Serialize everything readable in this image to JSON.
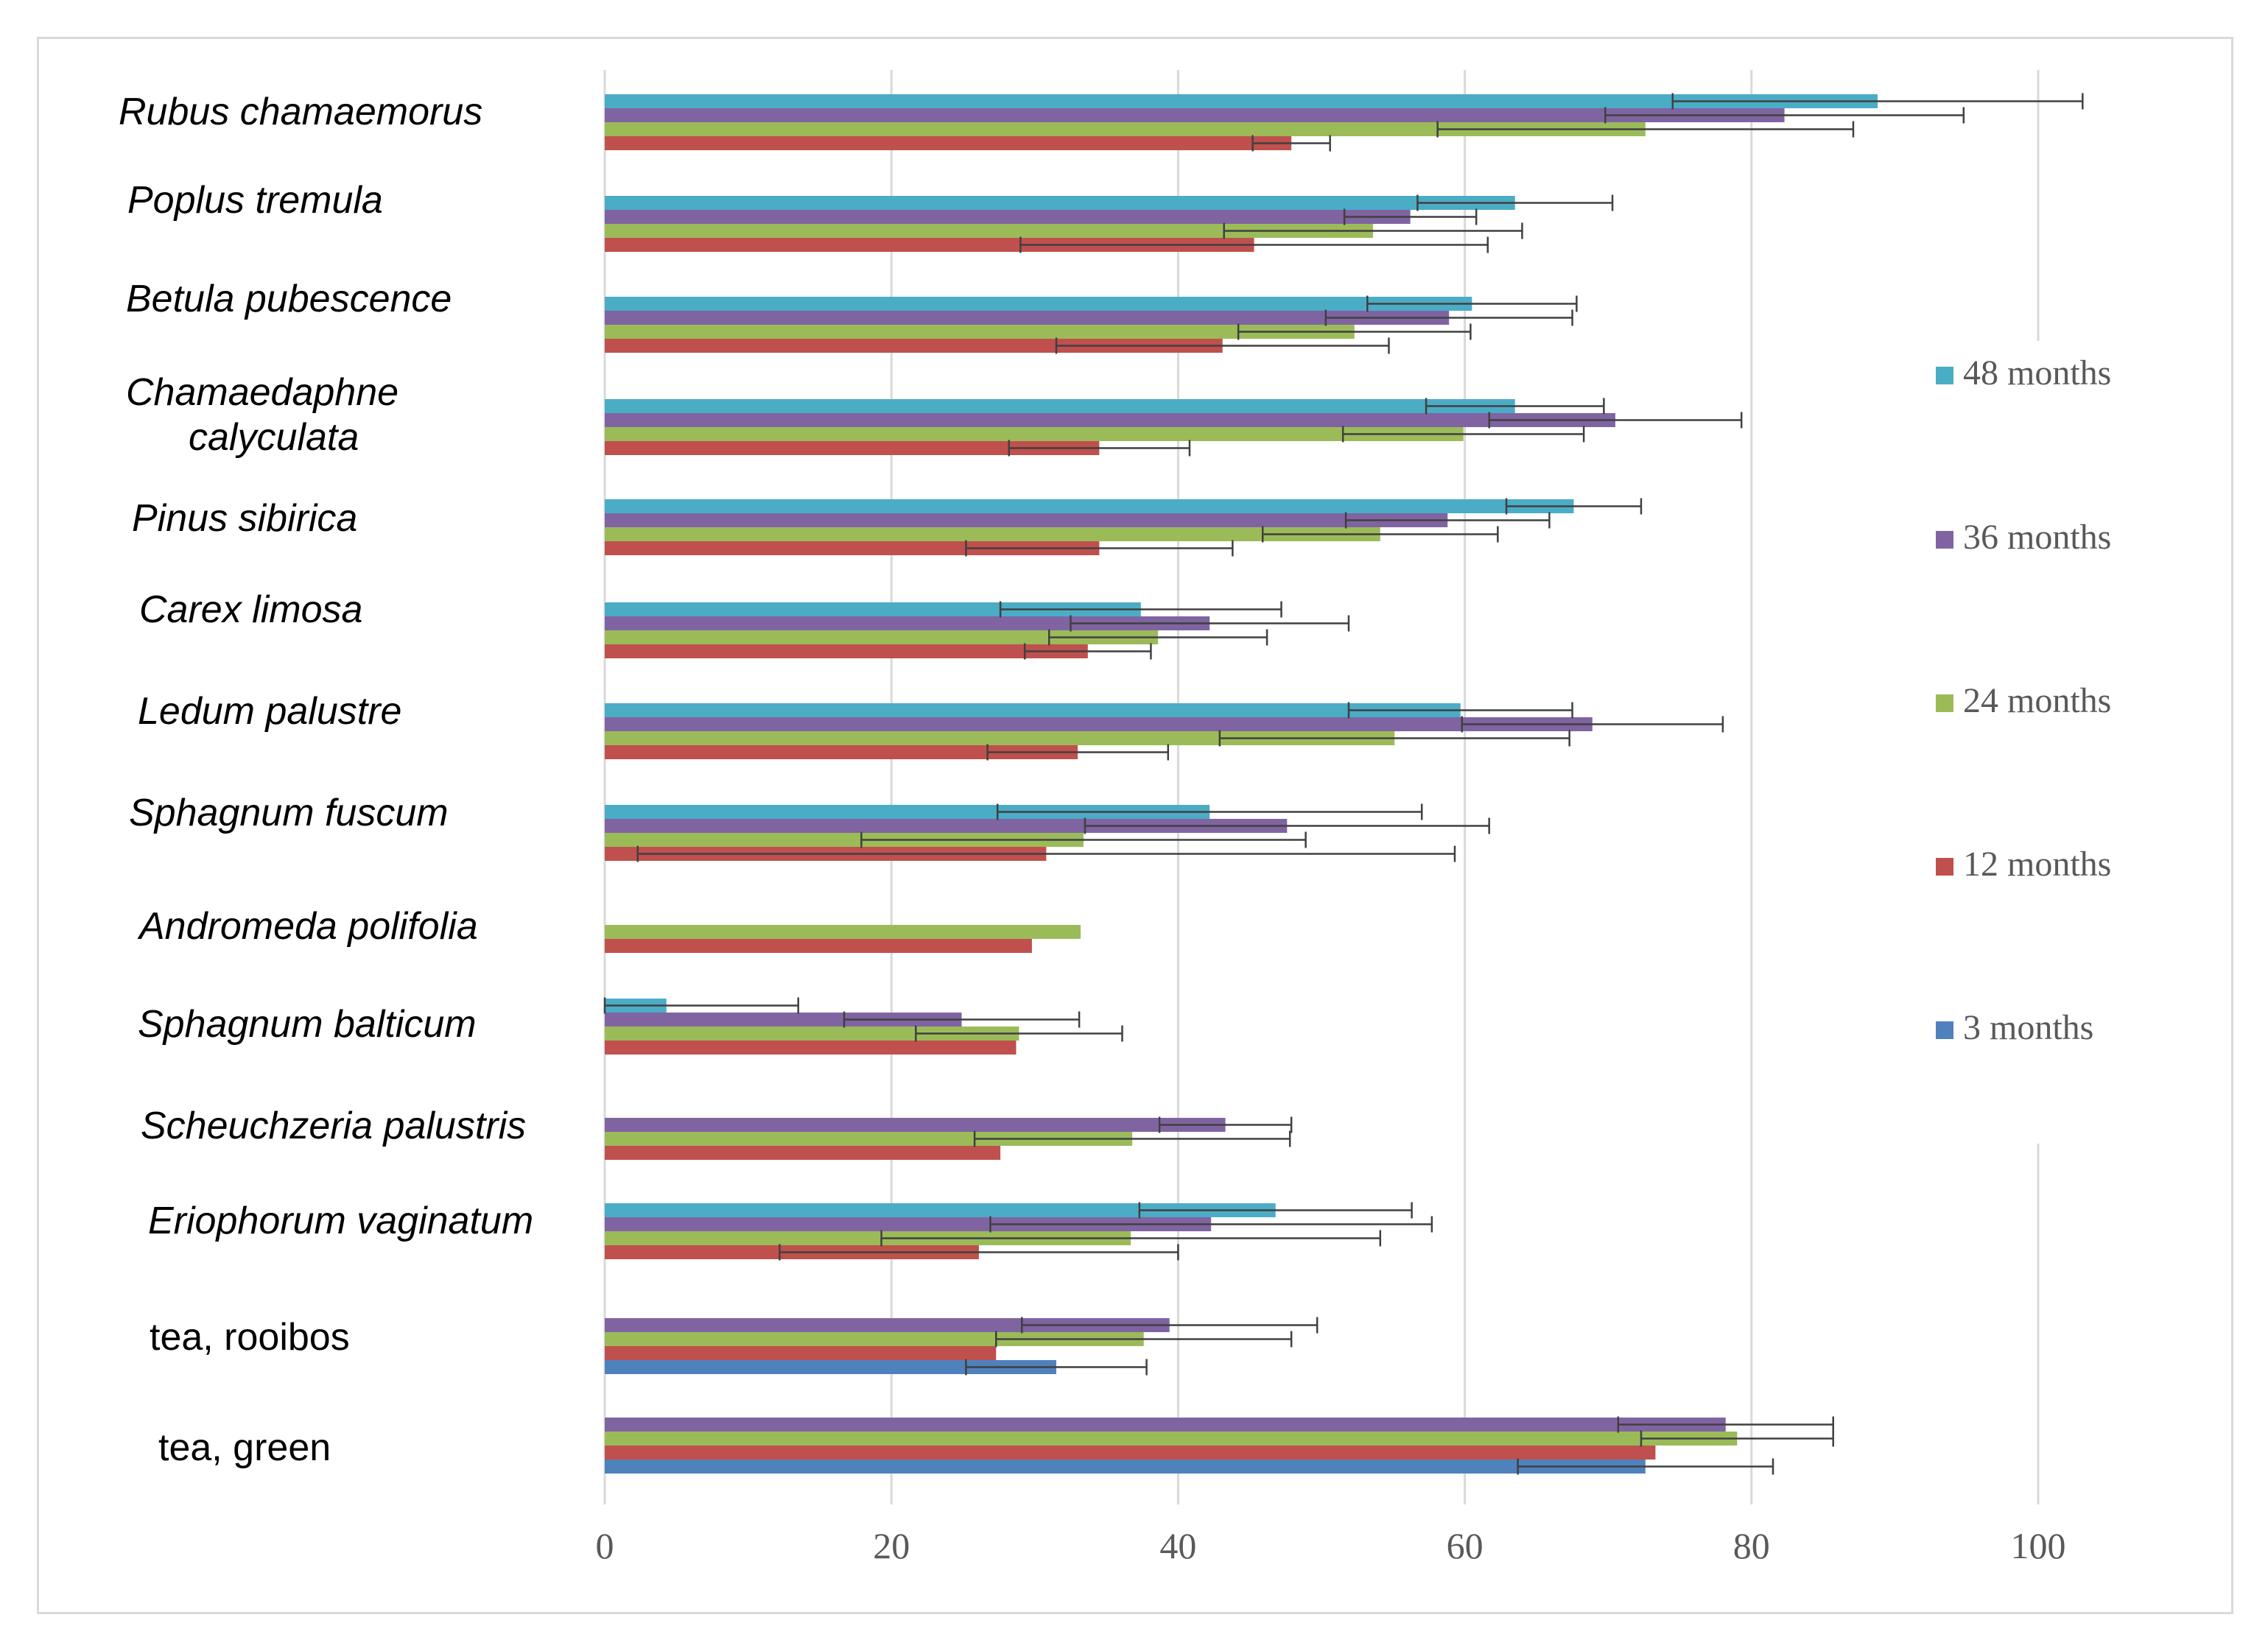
{
  "chart_data": {
    "type": "bar",
    "orientation": "horizontal",
    "title": "",
    "xlabel": "",
    "ylabel": "",
    "xlim": [
      0,
      100
    ],
    "xticks": [
      "0",
      "20",
      "40",
      "60",
      "80",
      "100"
    ],
    "grid": "vertical",
    "legend_position": "right",
    "categories": [
      {
        "label": "Rubus chamaemorus",
        "italic": true
      },
      {
        "label": "Poplus tremula",
        "italic": true
      },
      {
        "label": "Betula pubescence",
        "italic": true
      },
      {
        "label": "Chamaedaphne calyculata",
        "label_lines": [
          "Chamaedaphne",
          "calyculata"
        ],
        "italic": true
      },
      {
        "label": "Pinus sibirica",
        "italic": true
      },
      {
        "label": "Carex limosa",
        "italic": true
      },
      {
        "label": "Ledum palustre",
        "italic": true
      },
      {
        "label": "Sphagnum fuscum",
        "italic": true
      },
      {
        "label": "Andromeda polifolia",
        "italic": true
      },
      {
        "label": "Sphagnum balticum",
        "italic": true
      },
      {
        "label": "Scheuchzeria palustris",
        "italic": true
      },
      {
        "label": "Eriophorum vaginatum",
        "italic": true
      },
      {
        "label": "tea, rooibos",
        "italic": false
      },
      {
        "label": "tea, green",
        "italic": false
      }
    ],
    "series": [
      {
        "name": "48 months",
        "color": "#4bacc6",
        "values": [
          88.8,
          63.5,
          60.5,
          63.5,
          67.6,
          37.4,
          59.7,
          42.2,
          null,
          4.3,
          null,
          46.8,
          null,
          null
        ],
        "errors": [
          14.3,
          6.8,
          7.3,
          6.2,
          4.7,
          9.8,
          7.8,
          14.8,
          null,
          9.2,
          null,
          9.5,
          null,
          null
        ]
      },
      {
        "name": "36 months",
        "color": "#8064a2",
        "values": [
          82.3,
          56.2,
          58.9,
          70.5,
          58.8,
          42.2,
          68.9,
          47.6,
          null,
          24.9,
          43.3,
          42.3,
          39.4,
          78.2
        ],
        "errors": [
          12.5,
          4.6,
          8.6,
          8.8,
          7.1,
          9.7,
          9.1,
          14.1,
          null,
          8.2,
          4.6,
          15.4,
          10.3,
          7.5
        ]
      },
      {
        "name": "24 months",
        "color": "#9bbb59",
        "values": [
          72.6,
          53.6,
          52.3,
          59.9,
          54.1,
          38.6,
          55.1,
          33.4,
          33.2,
          28.9,
          36.8,
          36.7,
          37.6,
          79.0
        ],
        "errors": [
          14.5,
          10.4,
          8.1,
          8.4,
          8.2,
          7.6,
          12.2,
          15.5,
          null,
          7.2,
          11.0,
          17.4,
          10.3,
          6.7
        ]
      },
      {
        "name": "12 months",
        "color": "#c0504d",
        "values": [
          47.9,
          45.3,
          43.1,
          34.5,
          34.5,
          33.7,
          33.0,
          30.8,
          29.8,
          28.7,
          27.6,
          26.1,
          27.3,
          73.3
        ],
        "errors": [
          2.7,
          16.3,
          11.6,
          6.3,
          9.3,
          4.4,
          6.3,
          28.5,
          null,
          null,
          null,
          13.9,
          null,
          null
        ]
      },
      {
        "name": "3 months",
        "color": "#4f81bd",
        "values": [
          null,
          null,
          null,
          null,
          null,
          null,
          null,
          null,
          null,
          null,
          null,
          null,
          31.5,
          72.6
        ],
        "errors": [
          null,
          null,
          null,
          null,
          null,
          null,
          null,
          null,
          null,
          null,
          null,
          null,
          6.3,
          8.9
        ]
      }
    ]
  }
}
